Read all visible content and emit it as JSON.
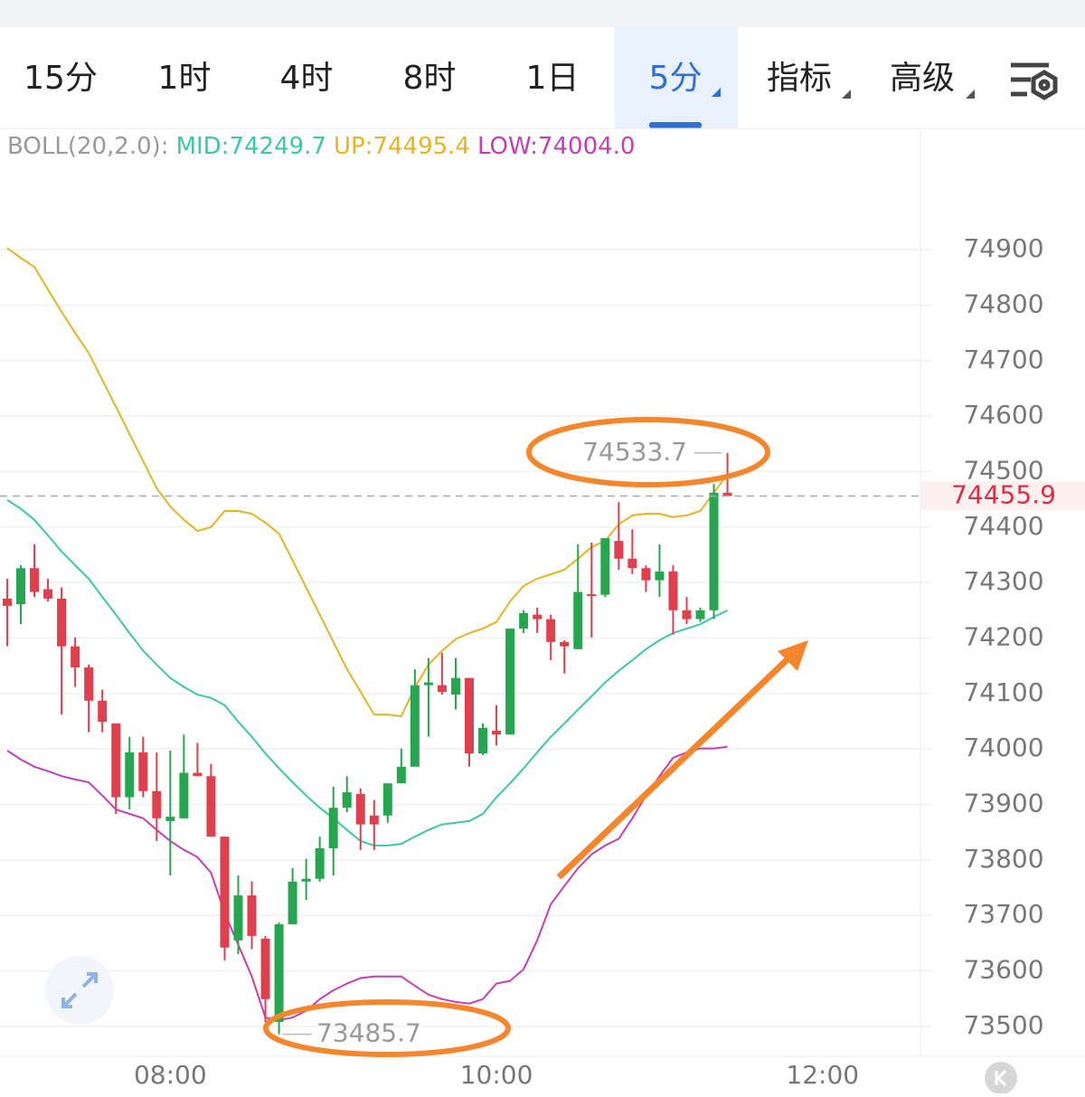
{
  "tabs": {
    "items": [
      "15分",
      "1时",
      "4时",
      "8时",
      "1日",
      "5分",
      "指标",
      "高级"
    ],
    "active": 5
  },
  "chart_data": {
    "type": "candlestick",
    "indicator": {
      "label": "BOLL(20,2.0):",
      "items": [
        "MID:74249.7",
        "UP:74495.4",
        "LOW:74004.0"
      ]
    },
    "open": [
      74271,
      74261,
      74326,
      74288,
      74271,
      74185,
      74147,
      74087,
      74046,
      73913,
      73994,
      73924,
      73870,
      73875,
      73957,
      73951,
      73842,
      73655,
      73736,
      73658,
      73508,
      73684,
      73761,
      73766,
      73821,
      73894,
      73919,
      73880,
      73880,
      73938,
      73968,
      74115,
      74115,
      74098,
      74128,
      73992,
      74033,
      74026,
      74217,
      74242,
      74234,
      74193,
      74180,
      74279,
      74278,
      74375,
      74343,
      74326,
      74304,
      74320,
      74250,
      74234,
      74250,
      74462
    ],
    "high": [
      74307,
      74331,
      74369,
      74307,
      74291,
      74201,
      74152,
      74107,
      74046,
      74022,
      74022,
      73994,
      73997,
      74026,
      74011,
      73973,
      73842,
      73772,
      73761,
      73663,
      73687,
      73785,
      73802,
      73842,
      73932,
      73951,
      73929,
      73908,
      73938,
      74001,
      74144,
      74164,
      74173,
      74164,
      74128,
      74046,
      74079,
      74217,
      74250,
      74255,
      74242,
      74196,
      74369,
      74372,
      74380,
      74445,
      74396,
      74331,
      74369,
      74331,
      74274,
      74255,
      74478,
      74533.7
    ],
    "low": [
      74185,
      74225,
      74274,
      74266,
      74062,
      74112,
      74030,
      74030,
      73883,
      73891,
      73913,
      73834,
      73772,
      73875,
      73951,
      73842,
      73619,
      73630,
      73639,
      73508,
      73485.7,
      73684,
      73728,
      73761,
      73772,
      73886,
      73818,
      73818,
      73867,
      73938,
      73968,
      74022,
      74098,
      74071,
      73968,
      73989,
      74006,
      74026,
      74209,
      74209,
      74160,
      74136,
      74180,
      74201,
      74274,
      74323,
      74315,
      74283,
      74274,
      74206,
      74225,
      74229,
      74234,
      74457
    ],
    "close": [
      74258,
      74326,
      74283,
      74271,
      74185,
      74147,
      74087,
      74049,
      73913,
      73994,
      73924,
      73875,
      73878,
      73957,
      73951,
      73842,
      73642,
      73736,
      73663,
      73549,
      73684,
      73761,
      73766,
      73821,
      73894,
      73922,
      73864,
      73864,
      73938,
      73968,
      74115,
      74120,
      74103,
      74128,
      73992,
      74038,
      74026,
      74217,
      74245,
      74234,
      74193,
      74185,
      74283,
      74276,
      74380,
      74343,
      74326,
      74304,
      74320,
      74250,
      74234,
      74250,
      74462,
      74455.9
    ],
    "up_color": "#26a74f",
    "down_color": "#e0404e",
    "series": [
      {
        "name": "MID",
        "color": "#3cc7a6",
        "values": [
          74449,
          74433,
          74413,
          74385,
          74356,
          74331,
          74307,
          74274,
          74242,
          74209,
          74177,
          74152,
          74128,
          74112,
          74098,
          74092,
          74079,
          74049,
          74022,
          73992,
          73965,
          73940,
          73916,
          73894,
          73875,
          73854,
          73834,
          73826,
          73826,
          73829,
          73842,
          73854,
          73864,
          73867,
          73870,
          73883,
          73913,
          73938,
          73965,
          73994,
          74022,
          74046,
          74071,
          74095,
          74120,
          74141,
          74160,
          74180,
          74196,
          74209,
          74217,
          74225,
          74238,
          74249.7
        ]
      },
      {
        "name": "UP",
        "color": "#e6b422",
        "values": [
          74903,
          74885,
          74869,
          74828,
          74788,
          74750,
          74714,
          74665,
          74617,
          74568,
          74519,
          74470,
          74437,
          74413,
          74393,
          74400,
          74429,
          74429,
          74424,
          74408,
          74388,
          74340,
          74291,
          74242,
          74193,
          74144,
          74103,
          74062,
          74062,
          74059,
          74111,
          74152,
          74177,
          74198,
          74209,
          74217,
          74229,
          74266,
          74294,
          74307,
          74315,
          74323,
          74343,
          74364,
          74375,
          74405,
          74421,
          74424,
          74424,
          74418,
          74421,
          74429,
          74462,
          74495.4
        ]
      },
      {
        "name": "LOW",
        "color": "#c43fb4",
        "values": [
          73997,
          73981,
          73968,
          73960,
          73951,
          73945,
          73940,
          73916,
          73891,
          73883,
          73875,
          73854,
          73834,
          73818,
          73805,
          73777,
          73704,
          73647,
          73590,
          73516,
          73511,
          73516,
          73528,
          73549,
          73565,
          73577,
          73587,
          73590,
          73590,
          73590,
          73573,
          73557,
          73549,
          73544,
          73541,
          73549,
          73577,
          73582,
          73603,
          73655,
          73720,
          73753,
          73785,
          73810,
          73826,
          73838,
          73875,
          73916,
          73951,
          73984,
          73994,
          74001,
          74001,
          74004.0
        ]
      }
    ],
    "ylim": [
      73446,
      75117
    ],
    "yticks": [
      73500,
      73600,
      73700,
      73800,
      73900,
      74000,
      74100,
      74200,
      74300,
      74400,
      74500,
      74600,
      74700,
      74800,
      74900
    ],
    "xlim": [
      -0.53,
      67.2
    ],
    "xticks": [
      {
        "value": 12,
        "label": "08:00"
      },
      {
        "value": 36,
        "label": "10:00"
      },
      {
        "value": 60,
        "label": "12:00"
      }
    ],
    "grid": true
  }
}
